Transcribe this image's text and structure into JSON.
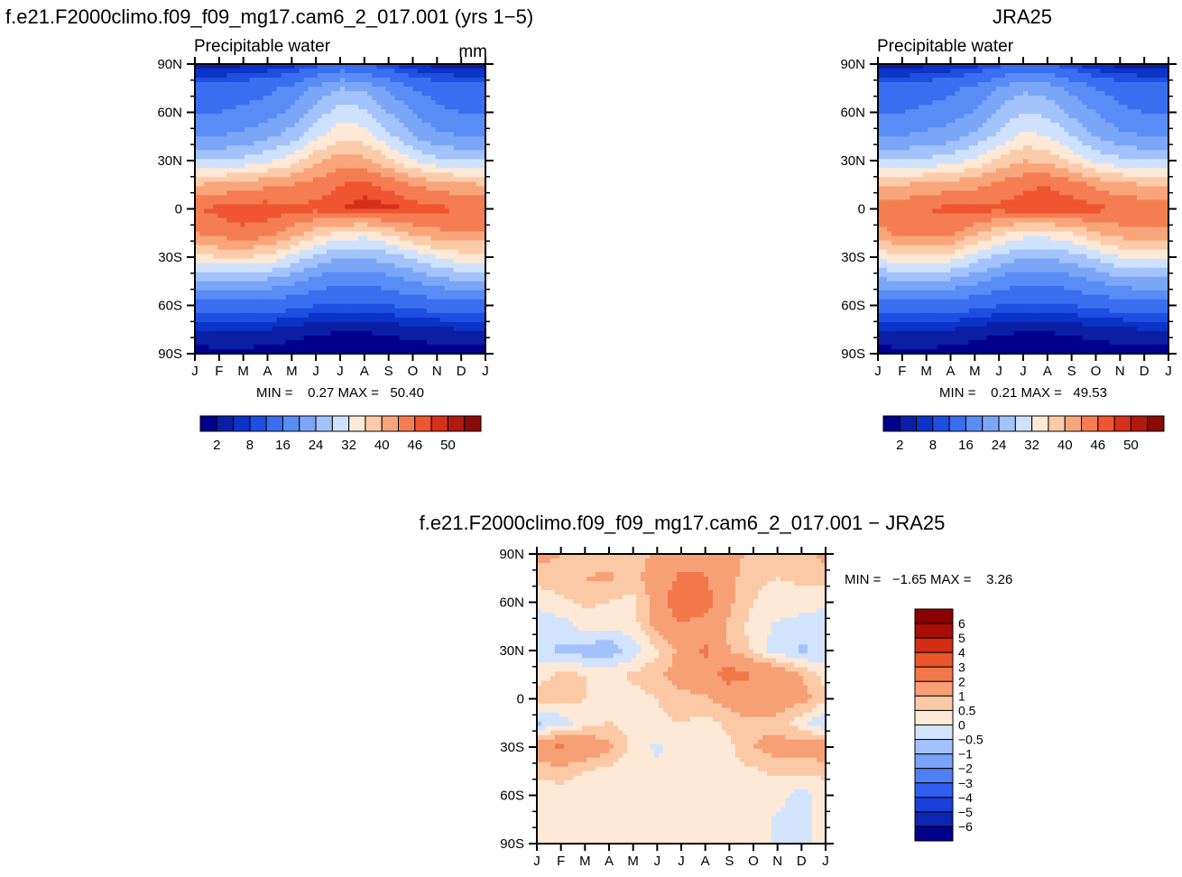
{
  "colors": {
    "model_levels": [
      "#00008c",
      "#0a1fa6",
      "#0c33c8",
      "#1f4fe0",
      "#3a6ef0",
      "#5a8cf5",
      "#7ba6f8",
      "#a2c3fb",
      "#cfe2fd",
      "#fde9d5",
      "#fccbaa",
      "#f9a57a",
      "#f57d52",
      "#ee5530",
      "#d6301a",
      "#b01a0e",
      "#8a0a06"
    ],
    "diff_levels": [
      "#00008c",
      "#0c26b0",
      "#1a40d8",
      "#2f5ef0",
      "#4f7ff5",
      "#7aa2f8",
      "#a3c2fb",
      "#d2e4fd",
      "#fde9d5",
      "#fbc9a6",
      "#f7a076",
      "#f2784a",
      "#ea552a",
      "#d42d14",
      "#a80d06",
      "#8a0000"
    ]
  },
  "panels": {
    "model": {
      "title": "f.e21.F2000climo.f09_f09_mg17.cam6_2_017.001 (yrs 1−5)",
      "subtitle": "Precipitable water",
      "units": "mm",
      "minmax": "MIN =    0.27 MAX =   50.40"
    },
    "obs": {
      "title": "JRA25",
      "subtitle": "Precipitable water",
      "minmax": "MIN =    0.21 MAX =   49.53"
    },
    "diff": {
      "title": "f.e21.F2000climo.f09_f09_mg17.cam6_2_017.001 − JRA25",
      "minmax": "MIN =   −1.65 MAX =    3.26"
    }
  },
  "chart_data": [
    {
      "type": "heatmap",
      "title": "f.e21.F2000climo.f09_f09_mg17.cam6_2_017.001 (yrs 1−5)",
      "variable": "Precipitable water",
      "units": "mm",
      "x": [
        "J",
        "F",
        "M",
        "A",
        "M",
        "J",
        "J",
        "A",
        "S",
        "O",
        "N",
        "D",
        "J"
      ],
      "y": [
        "90N",
        "60N",
        "30N",
        "0",
        "30S",
        "60S",
        "90S"
      ],
      "lat_nodes": [
        90,
        75,
        60,
        45,
        30,
        15,
        0,
        -15,
        -30,
        -45,
        -60,
        -75,
        -90
      ],
      "values": [
        [
          3,
          3,
          3.5,
          4,
          5,
          7,
          9,
          8,
          6,
          4,
          3,
          3,
          3
        ],
        [
          9,
          9,
          10,
          11,
          13,
          17,
          20,
          19,
          15,
          12,
          10,
          9,
          9
        ],
        [
          12,
          12,
          13,
          14,
          17,
          22,
          26,
          25,
          20,
          16,
          13,
          12,
          12
        ],
        [
          16,
          16,
          17,
          19,
          22,
          27,
          31,
          30,
          25,
          20,
          17,
          16,
          16
        ],
        [
          24,
          24,
          25,
          27,
          30,
          35,
          38,
          37,
          33,
          28,
          25,
          24,
          24
        ],
        [
          36,
          37,
          38,
          39,
          40,
          42,
          44,
          45,
          43,
          40,
          38,
          37,
          36
        ],
        [
          44,
          45,
          46,
          46,
          45,
          45,
          46,
          47,
          47,
          46,
          45,
          44,
          44
        ],
        [
          40,
          42,
          43,
          42,
          38,
          34,
          31,
          30,
          33,
          37,
          39,
          40,
          40
        ],
        [
          30,
          32,
          32,
          31,
          27,
          23,
          20,
          20,
          22,
          25,
          28,
          30,
          30
        ],
        [
          20,
          20,
          20,
          19,
          17,
          14,
          13,
          13,
          14,
          16,
          18,
          20,
          20
        ],
        [
          10,
          10,
          10,
          10,
          9,
          8,
          7.5,
          7.5,
          8,
          9,
          9.5,
          10,
          10
        ],
        [
          4,
          4.5,
          4.5,
          4,
          3,
          2.5,
          2.2,
          2.2,
          2.5,
          3,
          3.5,
          4,
          4
        ],
        [
          1,
          1.2,
          1.2,
          1,
          0.8,
          0.5,
          0.4,
          0.4,
          0.5,
          0.7,
          0.9,
          1,
          1
        ]
      ],
      "colorbar_ticks": [
        "2",
        "8",
        "16",
        "24",
        "32",
        "40",
        "46",
        "50"
      ],
      "levels": [
        2,
        4,
        6,
        8,
        12,
        16,
        20,
        24,
        28,
        32,
        36,
        40,
        44,
        46,
        48,
        50
      ],
      "min": 0.27,
      "max": 50.4
    },
    {
      "type": "heatmap",
      "title": "JRA25",
      "variable": "Precipitable water",
      "x": [
        "J",
        "F",
        "M",
        "A",
        "M",
        "J",
        "J",
        "A",
        "S",
        "O",
        "N",
        "D",
        "J"
      ],
      "y": [
        "90N",
        "60N",
        "30N",
        "0",
        "30S",
        "60S",
        "90S"
      ],
      "lat_nodes": [
        90,
        75,
        60,
        45,
        30,
        15,
        0,
        -15,
        -30,
        -45,
        -60,
        -75,
        -90
      ],
      "values": [
        [
          3,
          3,
          3.5,
          4,
          5,
          7,
          9,
          8,
          6,
          4,
          3,
          3,
          3
        ],
        [
          9,
          9,
          10,
          11,
          13,
          16,
          19,
          18,
          15,
          12,
          10,
          9,
          9
        ],
        [
          12,
          12,
          13,
          14,
          16,
          21,
          24,
          23,
          19,
          16,
          13,
          12,
          12
        ],
        [
          16,
          16,
          17,
          18,
          21,
          25,
          29,
          28,
          24,
          20,
          17,
          16,
          16
        ],
        [
          24,
          24,
          25,
          26,
          29,
          33,
          36,
          35,
          31,
          27,
          25,
          24,
          24
        ],
        [
          35,
          36,
          37,
          38,
          39,
          41,
          43,
          44,
          42,
          39,
          37,
          36,
          35
        ],
        [
          42,
          43,
          44,
          45,
          45,
          45,
          46,
          46,
          46,
          45,
          44,
          43,
          42
        ],
        [
          39,
          41,
          42,
          41,
          37,
          33,
          30,
          30,
          32,
          36,
          38,
          39,
          39
        ],
        [
          29,
          31,
          31,
          30,
          26,
          23,
          20,
          20,
          22,
          25,
          28,
          29,
          29
        ],
        [
          19,
          19,
          20,
          19,
          17,
          14,
          13,
          13,
          14,
          16,
          18,
          19,
          19
        ],
        [
          10,
          10,
          10,
          10,
          9,
          8,
          7.5,
          7.5,
          8,
          9,
          9.5,
          10,
          10
        ],
        [
          4,
          4.5,
          4.5,
          4,
          3,
          2.5,
          2.2,
          2.2,
          2.5,
          3,
          3.5,
          4,
          4
        ],
        [
          1,
          1.2,
          1.2,
          1,
          0.8,
          0.5,
          0.4,
          0.4,
          0.5,
          0.7,
          0.9,
          1,
          1
        ]
      ],
      "colorbar_ticks": [
        "2",
        "8",
        "16",
        "24",
        "32",
        "40",
        "46",
        "50"
      ],
      "levels": [
        2,
        4,
        6,
        8,
        12,
        16,
        20,
        24,
        28,
        32,
        36,
        40,
        44,
        46,
        48,
        50
      ],
      "min": 0.21,
      "max": 49.53
    },
    {
      "type": "heatmap",
      "title": "f.e21.F2000climo.f09_f09_mg17.cam6_2_017.001 − JRA25",
      "x": [
        "J",
        "F",
        "M",
        "A",
        "M",
        "J",
        "J",
        "A",
        "S",
        "O",
        "N",
        "D",
        "J"
      ],
      "y": [
        "90N",
        "60N",
        "30N",
        "0",
        "30S",
        "60S",
        "90S"
      ],
      "lat_nodes": [
        90,
        75,
        60,
        45,
        30,
        15,
        0,
        -15,
        -30,
        -45,
        -60,
        -75,
        -90
      ],
      "values": [
        [
          1.2,
          1.0,
          0.8,
          0.8,
          0.6,
          1.2,
          1.4,
          1.4,
          1.3,
          0.8,
          0.6,
          0.8,
          1.2
        ],
        [
          0.7,
          0.8,
          1.0,
          1.1,
          0.8,
          1.4,
          2.2,
          2.1,
          1.2,
          0.6,
          0.5,
          0.6,
          0.7
        ],
        [
          0.1,
          0.4,
          0.6,
          0.5,
          0.3,
          1.3,
          3.0,
          2.4,
          1.1,
          0.5,
          0.3,
          0.2,
          0.1
        ],
        [
          -0.3,
          -0.3,
          0.2,
          0.1,
          0.3,
          1.2,
          1.8,
          1.6,
          0.9,
          0.3,
          -0.1,
          -0.2,
          -0.3
        ],
        [
          -0.4,
          -0.6,
          -0.8,
          -0.9,
          -0.3,
          0.4,
          1.2,
          2.2,
          1.0,
          0.4,
          -0.3,
          -0.6,
          -0.4
        ],
        [
          0.3,
          0.6,
          0.5,
          0.3,
          0.6,
          0.9,
          1.3,
          1.6,
          2.4,
          2.0,
          1.6,
          1.0,
          0.3
        ],
        [
          0.7,
          0.8,
          0.5,
          0.2,
          0.3,
          0.5,
          0.8,
          0.9,
          1.3,
          1.6,
          1.5,
          1.2,
          0.7
        ],
        [
          -0.6,
          -0.4,
          0.3,
          0.5,
          0.3,
          0.4,
          0.5,
          0.3,
          0.6,
          0.9,
          0.7,
          0.2,
          -0.6
        ],
        [
          1.5,
          2.2,
          1.6,
          1.2,
          0.3,
          -0.1,
          0.3,
          0.3,
          0.4,
          1.0,
          1.3,
          1.4,
          1.5
        ],
        [
          0.6,
          0.7,
          0.5,
          0.3,
          0.2,
          0.1,
          0.2,
          0.3,
          0.3,
          0.4,
          0.6,
          0.6,
          0.6
        ],
        [
          0.3,
          0.3,
          0.2,
          0.2,
          0.2,
          0.2,
          0.2,
          0.2,
          0.3,
          0.3,
          0.2,
          -0.2,
          0.3
        ],
        [
          0.3,
          0.3,
          0.3,
          0.3,
          0.3,
          0.3,
          0.3,
          0.3,
          0.3,
          0.2,
          -0.1,
          -0.2,
          0.3
        ],
        [
          0.3,
          0.3,
          0.3,
          0.3,
          0.3,
          0.3,
          0.3,
          0.3,
          0.3,
          0.3,
          -0.1,
          -0.2,
          0.3
        ]
      ],
      "colorbar_ticks": [
        "6",
        "5",
        "4",
        "3",
        "2",
        "1",
        "0.5",
        "0",
        "−0.5",
        "−1",
        "−2",
        "−3",
        "−4",
        "−5",
        "−6"
      ],
      "levels": [
        -6,
        -5,
        -4,
        -3,
        -2,
        -1,
        -0.5,
        0,
        0.5,
        1,
        2,
        3,
        4,
        5,
        6
      ],
      "min": -1.65,
      "max": 3.26
    }
  ]
}
